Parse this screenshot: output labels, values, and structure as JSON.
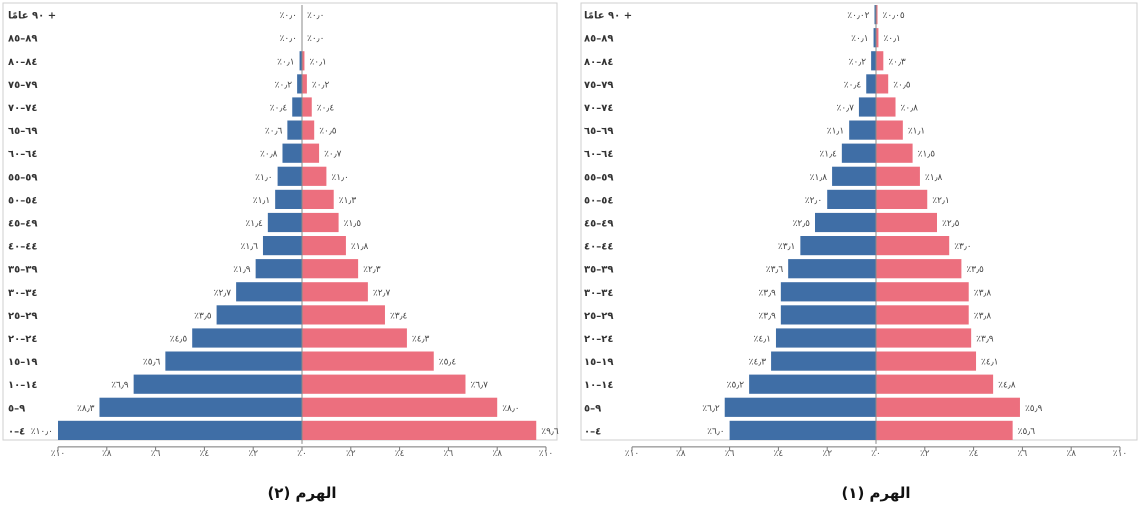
{
  "colors": {
    "male": "#3f6ea6",
    "female": "#ec6f7e"
  },
  "chart_data": [
    {
      "type": "bar",
      "orientation": "population-pyramid",
      "title": "الهرم (٢)",
      "xlim": [
        -10,
        10
      ],
      "x_ticks": [
        "٪١٠",
        "٪٨",
        "٪٦",
        "٪٤",
        "٪٢",
        "٪٠",
        "٪٢",
        "٪٤",
        "٪٦",
        "٪٨",
        "٪١٠"
      ],
      "categories": [
        "٩٠ عامًا +",
        "٨٩–٨٥",
        "٨٤–٨٠",
        "٧٩–٧٥",
        "٧٤–٧٠",
        "٦٩–٦٥",
        "٦٤–٦٠",
        "٥٩–٥٥",
        "٥٤–٥٠",
        "٤٩–٤٥",
        "٤٤–٤٠",
        "٣٩–٣٥",
        "٣٤–٣٠",
        "٢٩–٢٥",
        "٢٤–٢٠",
        "١٩–١٥",
        "١٤–١٠",
        "٩–٥",
        "٤–٠"
      ],
      "series": [
        {
          "side": "left",
          "values": [
            0.0,
            0.0,
            0.1,
            0.2,
            0.4,
            0.6,
            0.8,
            1.0,
            1.1,
            1.4,
            1.6,
            1.9,
            2.7,
            3.5,
            4.5,
            5.6,
            6.9,
            8.3,
            10.0
          ],
          "labels": [
            "٪٠٫٠",
            "٪٠٫٠",
            "٪٠٫١",
            "٪٠٫٢",
            "٪٠٫٤",
            "٪٠٫٦",
            "٪٠٫٨",
            "٪١٫٠",
            "٪١٫١",
            "٪١٫٤",
            "٪١٫٦",
            "٪١٫٩",
            "٪٢٫٧",
            "٪٣٫٥",
            "٪٤٫٥",
            "٪٥٫٦",
            "٪٦٫٩",
            "٪٨٫٣",
            "٪١٠٫٠"
          ]
        },
        {
          "side": "right",
          "values": [
            0.0,
            0.0,
            0.1,
            0.2,
            0.4,
            0.5,
            0.7,
            1.0,
            1.3,
            1.5,
            1.8,
            2.3,
            2.7,
            3.4,
            4.3,
            5.4,
            6.7,
            8.0,
            9.6
          ],
          "labels": [
            "٪٠٫٠",
            "٪٠٫٠",
            "٪٠٫١",
            "٪٠٫٢",
            "٪٠٫٤",
            "٪٠٫٥",
            "٪٠٫٧",
            "٪١٫٠",
            "٪١٫٣",
            "٪١٫٥",
            "٪١٫٨",
            "٪٢٫٣",
            "٪٢٫٧",
            "٪٣٫٤",
            "٪٤٫٣",
            "٪٥٫٤",
            "٪٦٫٧",
            "٪٨٫٠",
            "٪٩٫٦"
          ]
        }
      ]
    },
    {
      "type": "bar",
      "orientation": "population-pyramid",
      "title": "الهرم (١)",
      "xlim": [
        -10,
        10
      ],
      "x_ticks": [
        "٪١٠",
        "٪٨",
        "٪٦",
        "٪٤",
        "٪٢",
        "٪٠",
        "٪٢",
        "٪٤",
        "٪٦",
        "٪٨",
        "٪١٠"
      ],
      "categories": [
        "٩٠ عامًا +",
        "٨٩–٨٥",
        "٨٤–٨٠",
        "٧٩–٧٥",
        "٧٤–٧٠",
        "٦٩–٦٥",
        "٦٤–٦٠",
        "٥٩–٥٥",
        "٥٤–٥٠",
        "٤٩–٤٥",
        "٤٤–٤٠",
        "٣٩–٣٥",
        "٣٤–٣٠",
        "٢٩–٢٥",
        "٢٤–٢٠",
        "١٩–١٥",
        "١٤–١٠",
        "٩–٥",
        "٤–٠"
      ],
      "series": [
        {
          "side": "left",
          "values": [
            0.02,
            0.1,
            0.2,
            0.4,
            0.7,
            1.1,
            1.4,
            1.8,
            2.0,
            2.5,
            3.1,
            3.6,
            3.9,
            3.9,
            4.1,
            4.3,
            5.2,
            6.2,
            6.0
          ],
          "labels": [
            "٪٠٫٠٢",
            "٪٠٫١",
            "٪٠٫٢",
            "٪٠٫٤",
            "٪٠٫٧",
            "٪١٫١",
            "٪١٫٤",
            "٪١٫٨",
            "٪٢٫٠",
            "٪٢٫٥",
            "٪٣٫١",
            "٪٣٫٦",
            "٪٣٫٩",
            "٪٣٫٩",
            "٪٤٫١",
            "٪٤٫٣",
            "٪٥٫٢",
            "٪٦٫٢",
            "٪٦٫٠"
          ]
        },
        {
          "side": "right",
          "values": [
            0.05,
            0.1,
            0.3,
            0.5,
            0.8,
            1.1,
            1.5,
            1.8,
            2.1,
            2.5,
            3.0,
            3.5,
            3.8,
            3.8,
            3.9,
            4.1,
            4.8,
            5.9,
            5.6
          ],
          "labels": [
            "٪٠٫٠٥",
            "٪٠٫١",
            "٪٠٫٣",
            "٪٠٫٥",
            "٪٠٫٨",
            "٪١٫١",
            "٪١٫٥",
            "٪١٫٨",
            "٪٢٫١",
            "٪٢٫٥",
            "٪٣٫٠",
            "٪٣٫٥",
            "٪٣٫٨",
            "٪٣٫٨",
            "٪٣٫٩",
            "٪٤٫١",
            "٪٤٫٨",
            "٪٥٫٩",
            "٪٥٫٦"
          ]
        }
      ]
    }
  ]
}
